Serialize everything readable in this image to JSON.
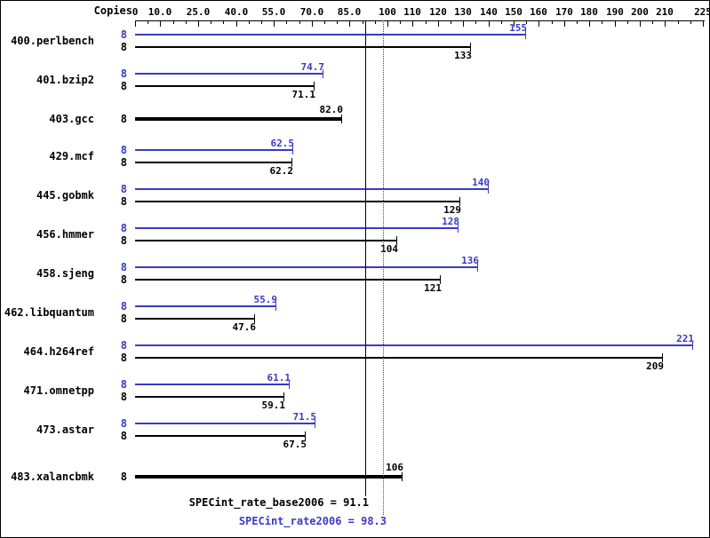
{
  "chart_data": {
    "type": "bar",
    "orientation": "horizontal",
    "title": "",
    "copies_header": "Copies",
    "axis": {
      "min": 0,
      "max": 225,
      "minor_tick_step": 5,
      "major_ticks": [
        {
          "value": 0,
          "label": "0"
        },
        {
          "value": 10,
          "label": "10.0"
        },
        {
          "value": 25,
          "label": "25.0"
        },
        {
          "value": 40,
          "label": "40.0"
        },
        {
          "value": 55,
          "label": "55.0"
        },
        {
          "value": 70,
          "label": "70.0"
        },
        {
          "value": 85,
          "label": "85.0"
        },
        {
          "value": 100,
          "label": "100"
        },
        {
          "value": 110,
          "label": "110"
        },
        {
          "value": 120,
          "label": "120"
        },
        {
          "value": 130,
          "label": "130"
        },
        {
          "value": 140,
          "label": "140"
        },
        {
          "value": 150,
          "label": "150"
        },
        {
          "value": 160,
          "label": "160"
        },
        {
          "value": 170,
          "label": "170"
        },
        {
          "value": 180,
          "label": "180"
        },
        {
          "value": 190,
          "label": "190"
        },
        {
          "value": 200,
          "label": "200"
        },
        {
          "value": 210,
          "label": "210"
        },
        {
          "value": 225,
          "label": "225"
        }
      ]
    },
    "colors": {
      "peak": "#3a3ac8",
      "base": "#000000"
    },
    "benchmarks": [
      {
        "name": "400.perlbench",
        "bars": [
          {
            "series": "peak",
            "copies": "8",
            "value": 155,
            "label": "155"
          },
          {
            "series": "base",
            "copies": "8",
            "value": 133,
            "label": "133"
          }
        ]
      },
      {
        "name": "401.bzip2",
        "bars": [
          {
            "series": "peak",
            "copies": "8",
            "value": 74.7,
            "label": "74.7"
          },
          {
            "series": "base",
            "copies": "8",
            "value": 71.1,
            "label": "71.1"
          }
        ]
      },
      {
        "name": "403.gcc",
        "bars": [
          {
            "series": "single",
            "copies": "8",
            "value": 82.0,
            "label": "82.0"
          }
        ]
      },
      {
        "name": "429.mcf",
        "bars": [
          {
            "series": "peak",
            "copies": "8",
            "value": 62.5,
            "label": "62.5"
          },
          {
            "series": "base",
            "copies": "8",
            "value": 62.2,
            "label": "62.2"
          }
        ]
      },
      {
        "name": "445.gobmk",
        "bars": [
          {
            "series": "peak",
            "copies": "8",
            "value": 140,
            "label": "140"
          },
          {
            "series": "base",
            "copies": "8",
            "value": 129,
            "label": "129"
          }
        ]
      },
      {
        "name": "456.hmmer",
        "bars": [
          {
            "series": "peak",
            "copies": "8",
            "value": 128,
            "label": "128"
          },
          {
            "series": "base",
            "copies": "8",
            "value": 104,
            "label": "104"
          }
        ]
      },
      {
        "name": "458.sjeng",
        "bars": [
          {
            "series": "peak",
            "copies": "8",
            "value": 136,
            "label": "136"
          },
          {
            "series": "base",
            "copies": "8",
            "value": 121,
            "label": "121"
          }
        ]
      },
      {
        "name": "462.libquantum",
        "bars": [
          {
            "series": "peak",
            "copies": "8",
            "value": 55.9,
            "label": "55.9"
          },
          {
            "series": "base",
            "copies": "8",
            "value": 47.6,
            "label": "47.6"
          }
        ]
      },
      {
        "name": "464.h264ref",
        "bars": [
          {
            "series": "peak",
            "copies": "8",
            "value": 221,
            "label": "221"
          },
          {
            "series": "base",
            "copies": "8",
            "value": 209,
            "label": "209"
          }
        ]
      },
      {
        "name": "471.omnetpp",
        "bars": [
          {
            "series": "peak",
            "copies": "8",
            "value": 61.1,
            "label": "61.1"
          },
          {
            "series": "base",
            "copies": "8",
            "value": 59.1,
            "label": "59.1"
          }
        ]
      },
      {
        "name": "473.astar",
        "bars": [
          {
            "series": "peak",
            "copies": "8",
            "value": 71.5,
            "label": "71.5"
          },
          {
            "series": "base",
            "copies": "8",
            "value": 67.5,
            "label": "67.5"
          }
        ]
      },
      {
        "name": "483.xalancbmk",
        "bars": [
          {
            "series": "single",
            "copies": "8",
            "value": 106,
            "label": "106"
          }
        ]
      }
    ],
    "reference_lines": [
      {
        "id": "base",
        "label": "SPECint_rate_base2006 = 91.1",
        "value": 91.1,
        "line_style": "solid",
        "color": "#000000"
      },
      {
        "id": "peak",
        "label": "SPECint_rate2006 = 98.3",
        "value": 98.3,
        "line_style": "dotted",
        "color": "#3a3ac8"
      }
    ]
  }
}
